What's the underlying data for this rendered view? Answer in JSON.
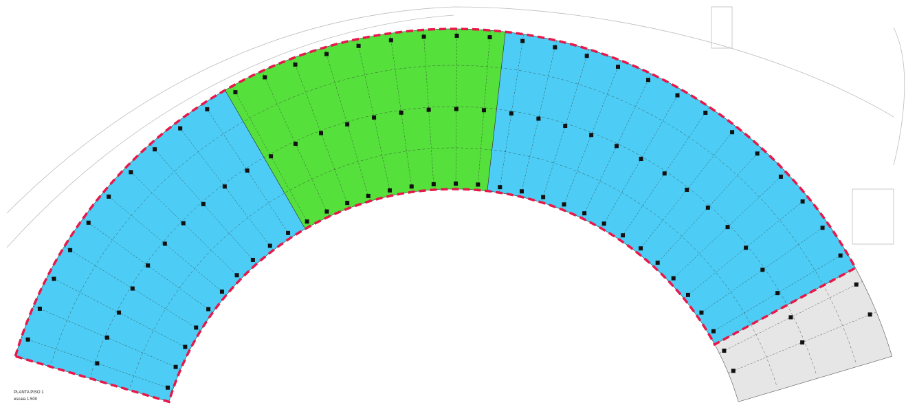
{
  "drawing": {
    "title": "PLANTA PISO 1",
    "scale": "escala 1:500"
  }
}
